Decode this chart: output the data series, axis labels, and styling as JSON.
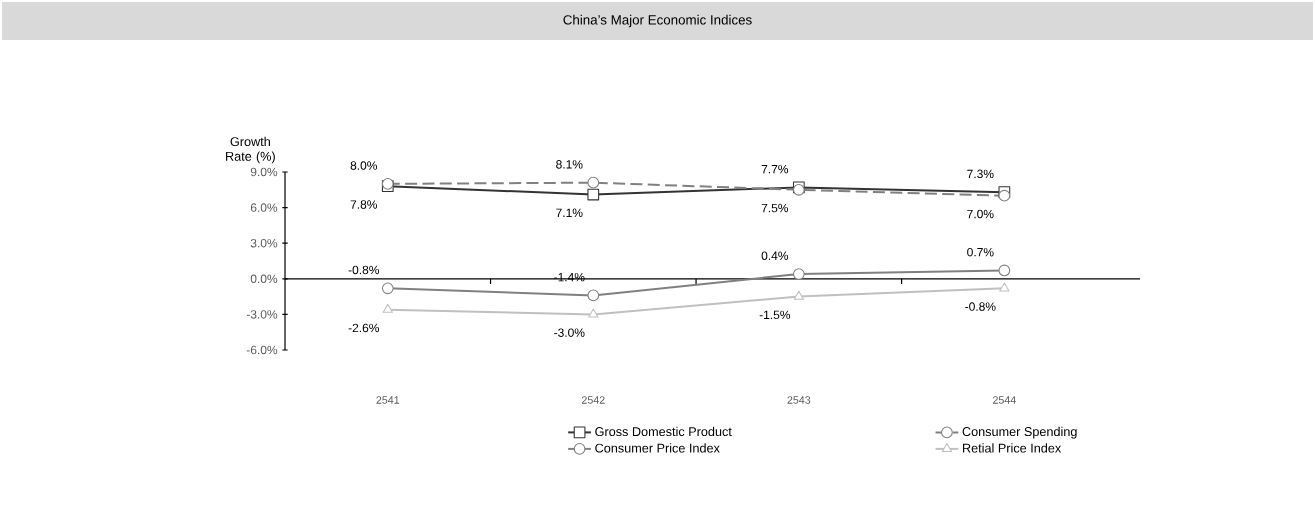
{
  "chart_data": {
    "type": "line",
    "title": "China’s Major Economic Indices",
    "ylabel": "Growth Rate (%)",
    "categories": [
      "2541",
      "2542",
      "2543",
      "2544"
    ],
    "ylim": [
      -6,
      9
    ],
    "yticks": [
      {
        "value": -6,
        "label": "-6.0%"
      },
      {
        "value": -3,
        "label": "-3.0%"
      },
      {
        "value": 0,
        "label": "0.0%"
      },
      {
        "value": 3,
        "label": "3.0%"
      },
      {
        "value": 6,
        "label": "6.0%"
      },
      {
        "value": 9,
        "label": "9.0%"
      }
    ],
    "legend": "bottom",
    "series": [
      {
        "name": "Gross Domestic Product",
        "color": "#333333",
        "marker": "square",
        "line_style": "solid",
        "values": [
          7.8,
          7.1,
          7.7,
          7.3
        ],
        "value_labels": [
          "7.8%",
          "7.1%",
          "7.7%",
          "7.3%"
        ]
      },
      {
        "name": "Consumer Spending",
        "color": "#808080",
        "marker": "circle",
        "line_style": "dashed",
        "values": [
          8.0,
          8.1,
          7.5,
          7.0
        ],
        "value_labels": [
          "8.0%",
          "8.1%",
          "7.5%",
          "7.0%"
        ]
      },
      {
        "name": "Consumer Price Index",
        "color": "#808080",
        "marker": "circle",
        "line_style": "solid",
        "values": [
          -0.8,
          -1.4,
          0.4,
          0.7
        ],
        "value_labels": [
          "-0.8%",
          "-1.4%",
          "0.4%",
          "0.7%"
        ]
      },
      {
        "name": "Retial Price Index",
        "color": "#c0c0c0",
        "marker": "triangle",
        "line_style": "solid",
        "values": [
          -2.6,
          -3.0,
          -1.5,
          -0.8
        ],
        "value_labels": [
          "-2.6%",
          "-3.0%",
          "-1.5%",
          "-0.8%"
        ]
      }
    ]
  }
}
